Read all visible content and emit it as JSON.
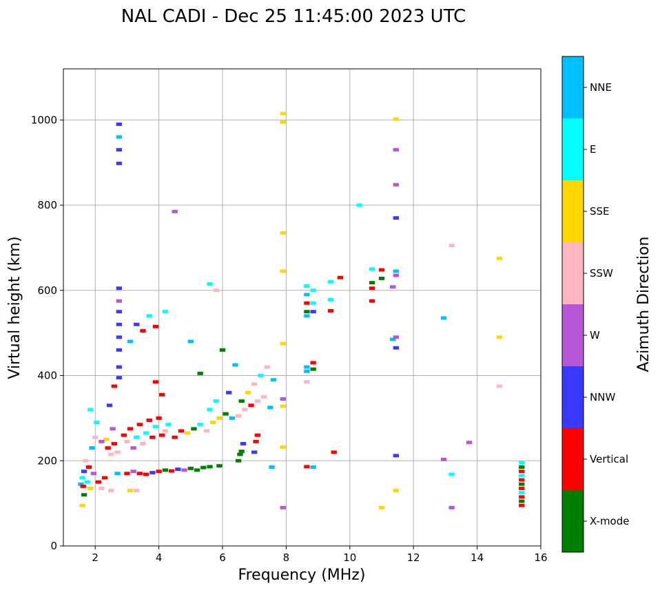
{
  "chart_data": {
    "type": "scatter",
    "title": "NAL CADI - Dec 25 11:45:00 2023 UTC",
    "xlabel": "Frequency (MHz)",
    "ylabel": "Virtual height (km)",
    "xlim": [
      1,
      16
    ],
    "ylim": [
      0,
      1120
    ],
    "xticks": [
      2,
      4,
      6,
      8,
      10,
      12,
      14,
      16
    ],
    "yticks": [
      0,
      200,
      400,
      600,
      800,
      1000
    ],
    "grid": true,
    "colorbar": {
      "label": "Azimuth Direction",
      "categories": [
        {
          "name": "X-mode",
          "color": "#008000"
        },
        {
          "name": "Vertical",
          "color": "#ff0000"
        },
        {
          "name": "NNW",
          "color": "#3a3aff"
        },
        {
          "name": "W",
          "color": "#b756d7"
        },
        {
          "name": "SSW",
          "color": "#ffb6c1"
        },
        {
          "name": "SSE",
          "color": "#ffd700"
        },
        {
          "name": "E",
          "color": "#00ffff"
        },
        {
          "name": "NNE",
          "color": "#00bfff"
        }
      ]
    },
    "points": [
      {
        "f": 1.55,
        "h": 145,
        "c": "NNE"
      },
      {
        "f": 1.6,
        "h": 160,
        "c": "E"
      },
      {
        "f": 1.62,
        "h": 140,
        "c": "Vertical"
      },
      {
        "f": 1.65,
        "h": 175,
        "c": "NNW"
      },
      {
        "f": 1.7,
        "h": 200,
        "c": "SSW"
      },
      {
        "f": 1.75,
        "h": 150,
        "c": "E"
      },
      {
        "f": 1.8,
        "h": 185,
        "c": "Vertical"
      },
      {
        "f": 1.85,
        "h": 135,
        "c": "SSE"
      },
      {
        "f": 1.9,
        "h": 230,
        "c": "NNE"
      },
      {
        "f": 1.95,
        "h": 170,
        "c": "W"
      },
      {
        "f": 2.0,
        "h": 255,
        "c": "SSW"
      },
      {
        "f": 2.05,
        "h": 290,
        "c": "E"
      },
      {
        "f": 1.6,
        "h": 95,
        "c": "SSE"
      },
      {
        "f": 1.65,
        "h": 120,
        "c": "X-mode"
      },
      {
        "f": 1.85,
        "h": 320,
        "c": "E"
      },
      {
        "f": 2.1,
        "h": 150,
        "c": "Vertical"
      },
      {
        "f": 2.2,
        "h": 135,
        "c": "SSW"
      },
      {
        "f": 2.3,
        "h": 160,
        "c": "Vertical"
      },
      {
        "f": 2.35,
        "h": 250,
        "c": "SSE"
      },
      {
        "f": 2.4,
        "h": 230,
        "c": "Vertical"
      },
      {
        "f": 2.5,
        "h": 215,
        "c": "SSW"
      },
      {
        "f": 2.6,
        "h": 240,
        "c": "Vertical"
      },
      {
        "f": 2.7,
        "h": 220,
        "c": "SSW"
      },
      {
        "f": 2.55,
        "h": 275,
        "c": "W"
      },
      {
        "f": 2.45,
        "h": 330,
        "c": "NNW"
      },
      {
        "f": 2.6,
        "h": 375,
        "c": "Vertical"
      },
      {
        "f": 2.7,
        "h": 170,
        "c": "NNE"
      },
      {
        "f": 2.5,
        "h": 130,
        "c": "SSW"
      },
      {
        "f": 2.2,
        "h": 245,
        "c": "W"
      },
      {
        "f": 2.9,
        "h": 260,
        "c": "Vertical"
      },
      {
        "f": 3.0,
        "h": 245,
        "c": "SSW"
      },
      {
        "f": 3.1,
        "h": 275,
        "c": "Vertical"
      },
      {
        "f": 3.2,
        "h": 230,
        "c": "W"
      },
      {
        "f": 3.3,
        "h": 255,
        "c": "E"
      },
      {
        "f": 3.4,
        "h": 285,
        "c": "Vertical"
      },
      {
        "f": 3.5,
        "h": 240,
        "c": "SSW"
      },
      {
        "f": 3.6,
        "h": 265,
        "c": "E"
      },
      {
        "f": 3.7,
        "h": 295,
        "c": "Vertical"
      },
      {
        "f": 3.8,
        "h": 255,
        "c": "Vertical"
      },
      {
        "f": 3.9,
        "h": 280,
        "c": "E"
      },
      {
        "f": 4.0,
        "h": 300,
        "c": "Vertical"
      },
      {
        "f": 4.1,
        "h": 260,
        "c": "Vertical"
      },
      {
        "f": 4.2,
        "h": 270,
        "c": "SSW"
      },
      {
        "f": 4.3,
        "h": 285,
        "c": "E"
      },
      {
        "f": 4.5,
        "h": 255,
        "c": "Vertical"
      },
      {
        "f": 3.0,
        "h": 170,
        "c": "Vertical"
      },
      {
        "f": 3.2,
        "h": 175,
        "c": "W"
      },
      {
        "f": 3.4,
        "h": 170,
        "c": "Vertical"
      },
      {
        "f": 3.6,
        "h": 168,
        "c": "Vertical"
      },
      {
        "f": 3.8,
        "h": 172,
        "c": "NNW"
      },
      {
        "f": 4.0,
        "h": 175,
        "c": "Vertical"
      },
      {
        "f": 4.2,
        "h": 178,
        "c": "X-mode"
      },
      {
        "f": 4.4,
        "h": 176,
        "c": "Vertical"
      },
      {
        "f": 4.6,
        "h": 180,
        "c": "NNW"
      },
      {
        "f": 4.8,
        "h": 178,
        "c": "W"
      },
      {
        "f": 5.0,
        "h": 182,
        "c": "X-mode"
      },
      {
        "f": 5.2,
        "h": 178,
        "c": "X-mode"
      },
      {
        "f": 5.4,
        "h": 184,
        "c": "X-mode"
      },
      {
        "f": 5.6,
        "h": 186,
        "c": "X-mode"
      },
      {
        "f": 5.9,
        "h": 188,
        "c": "X-mode"
      },
      {
        "f": 3.1,
        "h": 130,
        "c": "SSE"
      },
      {
        "f": 3.3,
        "h": 130,
        "c": "SSW"
      },
      {
        "f": 4.7,
        "h": 270,
        "c": "Vertical"
      },
      {
        "f": 4.9,
        "h": 265,
        "c": "SSE"
      },
      {
        "f": 5.1,
        "h": 275,
        "c": "X-mode"
      },
      {
        "f": 5.3,
        "h": 285,
        "c": "E"
      },
      {
        "f": 5.5,
        "h": 270,
        "c": "SSW"
      },
      {
        "f": 5.7,
        "h": 290,
        "c": "SSE"
      },
      {
        "f": 5.9,
        "h": 300,
        "c": "SSE"
      },
      {
        "f": 6.1,
        "h": 310,
        "c": "X-mode"
      },
      {
        "f": 6.3,
        "h": 300,
        "c": "NNE"
      },
      {
        "f": 6.5,
        "h": 305,
        "c": "SSW"
      },
      {
        "f": 6.7,
        "h": 320,
        "c": "SSW"
      },
      {
        "f": 6.9,
        "h": 330,
        "c": "Vertical"
      },
      {
        "f": 7.1,
        "h": 340,
        "c": "SSW"
      },
      {
        "f": 7.3,
        "h": 350,
        "c": "SSW"
      },
      {
        "f": 7.5,
        "h": 325,
        "c": "NNE"
      },
      {
        "f": 6.6,
        "h": 340,
        "c": "X-mode"
      },
      {
        "f": 6.8,
        "h": 360,
        "c": "SSE"
      },
      {
        "f": 7.0,
        "h": 380,
        "c": "SSW"
      },
      {
        "f": 7.2,
        "h": 400,
        "c": "E"
      },
      {
        "f": 7.4,
        "h": 420,
        "c": "SSW"
      },
      {
        "f": 7.6,
        "h": 390,
        "c": "NNE"
      },
      {
        "f": 5.6,
        "h": 320,
        "c": "E"
      },
      {
        "f": 5.8,
        "h": 340,
        "c": "E"
      },
      {
        "f": 6.2,
        "h": 360,
        "c": "NNW"
      },
      {
        "f": 6.4,
        "h": 425,
        "c": "NNE"
      },
      {
        "f": 6.0,
        "h": 460,
        "c": "X-mode"
      },
      {
        "f": 5.3,
        "h": 405,
        "c": "X-mode"
      },
      {
        "f": 5.0,
        "h": 480,
        "c": "NNE"
      },
      {
        "f": 6.5,
        "h": 200,
        "c": "X-mode"
      },
      {
        "f": 6.55,
        "h": 215,
        "c": "X-mode"
      },
      {
        "f": 6.6,
        "h": 222,
        "c": "X-mode"
      },
      {
        "f": 6.65,
        "h": 240,
        "c": "NNW"
      },
      {
        "f": 7.0,
        "h": 220,
        "c": "NNW"
      },
      {
        "f": 7.05,
        "h": 245,
        "c": "Vertical"
      },
      {
        "f": 7.1,
        "h": 260,
        "c": "Vertical"
      },
      {
        "f": 7.55,
        "h": 185,
        "c": "NNE"
      },
      {
        "f": 2.75,
        "h": 990,
        "c": "NNW"
      },
      {
        "f": 2.75,
        "h": 960,
        "c": "NNE"
      },
      {
        "f": 2.75,
        "h": 930,
        "c": "NNW"
      },
      {
        "f": 2.75,
        "h": 898,
        "c": "NNW"
      },
      {
        "f": 2.75,
        "h": 605,
        "c": "NNW"
      },
      {
        "f": 2.75,
        "h": 575,
        "c": "W"
      },
      {
        "f": 2.75,
        "h": 550,
        "c": "NNW"
      },
      {
        "f": 2.75,
        "h": 520,
        "c": "NNW"
      },
      {
        "f": 2.75,
        "h": 490,
        "c": "NNW"
      },
      {
        "f": 2.75,
        "h": 460,
        "c": "NNW"
      },
      {
        "f": 2.75,
        "h": 420,
        "c": "NNW"
      },
      {
        "f": 2.75,
        "h": 395,
        "c": "NNW"
      },
      {
        "f": 3.1,
        "h": 480,
        "c": "NNE"
      },
      {
        "f": 3.3,
        "h": 520,
        "c": "NNW"
      },
      {
        "f": 3.5,
        "h": 505,
        "c": "Vertical"
      },
      {
        "f": 3.7,
        "h": 540,
        "c": "E"
      },
      {
        "f": 3.9,
        "h": 515,
        "c": "Vertical"
      },
      {
        "f": 4.2,
        "h": 550,
        "c": "E"
      },
      {
        "f": 4.5,
        "h": 785,
        "c": "W"
      },
      {
        "f": 3.9,
        "h": 385,
        "c": "Vertical"
      },
      {
        "f": 4.1,
        "h": 355,
        "c": "Vertical"
      },
      {
        "f": 5.6,
        "h": 615,
        "c": "E"
      },
      {
        "f": 5.8,
        "h": 600,
        "c": "SSW"
      },
      {
        "f": 7.9,
        "h": 1015,
        "c": "SSE"
      },
      {
        "f": 7.9,
        "h": 995,
        "c": "SSE"
      },
      {
        "f": 7.9,
        "h": 735,
        "c": "SSE"
      },
      {
        "f": 7.9,
        "h": 645,
        "c": "SSE"
      },
      {
        "f": 7.9,
        "h": 475,
        "c": "SSE"
      },
      {
        "f": 7.9,
        "h": 345,
        "c": "W"
      },
      {
        "f": 7.9,
        "h": 328,
        "c": "SSE"
      },
      {
        "f": 7.9,
        "h": 232,
        "c": "SSE"
      },
      {
        "f": 7.9,
        "h": 90,
        "c": "W"
      },
      {
        "f": 8.65,
        "h": 610,
        "c": "E"
      },
      {
        "f": 8.65,
        "h": 590,
        "c": "NNE"
      },
      {
        "f": 8.65,
        "h": 570,
        "c": "Vertical"
      },
      {
        "f": 8.65,
        "h": 550,
        "c": "X-mode"
      },
      {
        "f": 8.65,
        "h": 540,
        "c": "NNE"
      },
      {
        "f": 8.65,
        "h": 420,
        "c": "NNE"
      },
      {
        "f": 8.65,
        "h": 410,
        "c": "NNE"
      },
      {
        "f": 8.65,
        "h": 385,
        "c": "SSW"
      },
      {
        "f": 8.65,
        "h": 186,
        "c": "Vertical"
      },
      {
        "f": 8.85,
        "h": 600,
        "c": "E"
      },
      {
        "f": 8.85,
        "h": 570,
        "c": "E"
      },
      {
        "f": 8.85,
        "h": 550,
        "c": "NNW"
      },
      {
        "f": 8.85,
        "h": 430,
        "c": "Vertical"
      },
      {
        "f": 8.85,
        "h": 415,
        "c": "X-mode"
      },
      {
        "f": 8.85,
        "h": 185,
        "c": "NNE"
      },
      {
        "f": 9.4,
        "h": 620,
        "c": "E"
      },
      {
        "f": 9.4,
        "h": 578,
        "c": "E"
      },
      {
        "f": 9.4,
        "h": 552,
        "c": "Vertical"
      },
      {
        "f": 9.7,
        "h": 630,
        "c": "Vertical"
      },
      {
        "f": 9.5,
        "h": 220,
        "c": "Vertical"
      },
      {
        "f": 10.3,
        "h": 800,
        "c": "E"
      },
      {
        "f": 10.7,
        "h": 650,
        "c": "E"
      },
      {
        "f": 10.7,
        "h": 618,
        "c": "X-mode"
      },
      {
        "f": 10.7,
        "h": 605,
        "c": "Vertical"
      },
      {
        "f": 10.7,
        "h": 575,
        "c": "Vertical"
      },
      {
        "f": 11.0,
        "h": 648,
        "c": "Vertical"
      },
      {
        "f": 11.0,
        "h": 628,
        "c": "X-mode"
      },
      {
        "f": 11.0,
        "h": 90,
        "c": "SSE"
      },
      {
        "f": 11.35,
        "h": 608,
        "c": "W"
      },
      {
        "f": 11.35,
        "h": 485,
        "c": "NNE"
      },
      {
        "f": 11.45,
        "h": 1002,
        "c": "SSE"
      },
      {
        "f": 11.45,
        "h": 930,
        "c": "W"
      },
      {
        "f": 11.45,
        "h": 848,
        "c": "W"
      },
      {
        "f": 11.45,
        "h": 770,
        "c": "NNW"
      },
      {
        "f": 11.45,
        "h": 645,
        "c": "NNE"
      },
      {
        "f": 11.45,
        "h": 635,
        "c": "W"
      },
      {
        "f": 11.45,
        "h": 490,
        "c": "W"
      },
      {
        "f": 11.45,
        "h": 465,
        "c": "NNW"
      },
      {
        "f": 11.45,
        "h": 212,
        "c": "NNW"
      },
      {
        "f": 11.45,
        "h": 130,
        "c": "SSE"
      },
      {
        "f": 12.95,
        "h": 535,
        "c": "NNE"
      },
      {
        "f": 13.2,
        "h": 705,
        "c": "SSW"
      },
      {
        "f": 12.95,
        "h": 203,
        "c": "W"
      },
      {
        "f": 13.2,
        "h": 168,
        "c": "E"
      },
      {
        "f": 13.2,
        "h": 90,
        "c": "W"
      },
      {
        "f": 13.75,
        "h": 243,
        "c": "W"
      },
      {
        "f": 14.7,
        "h": 675,
        "c": "SSE"
      },
      {
        "f": 14.7,
        "h": 490,
        "c": "SSE"
      },
      {
        "f": 14.7,
        "h": 375,
        "c": "SSW"
      },
      {
        "f": 15.4,
        "h": 195,
        "c": "E"
      },
      {
        "f": 15.4,
        "h": 185,
        "c": "X-mode"
      },
      {
        "f": 15.4,
        "h": 175,
        "c": "Vertical"
      },
      {
        "f": 15.4,
        "h": 165,
        "c": "E"
      },
      {
        "f": 15.4,
        "h": 155,
        "c": "Vertical"
      },
      {
        "f": 15.4,
        "h": 145,
        "c": "X-mode"
      },
      {
        "f": 15.4,
        "h": 135,
        "c": "Vertical"
      },
      {
        "f": 15.4,
        "h": 125,
        "c": "E"
      },
      {
        "f": 15.4,
        "h": 115,
        "c": "Vertical"
      },
      {
        "f": 15.4,
        "h": 105,
        "c": "X-mode"
      },
      {
        "f": 15.4,
        "h": 95,
        "c": "Vertical"
      }
    ]
  }
}
